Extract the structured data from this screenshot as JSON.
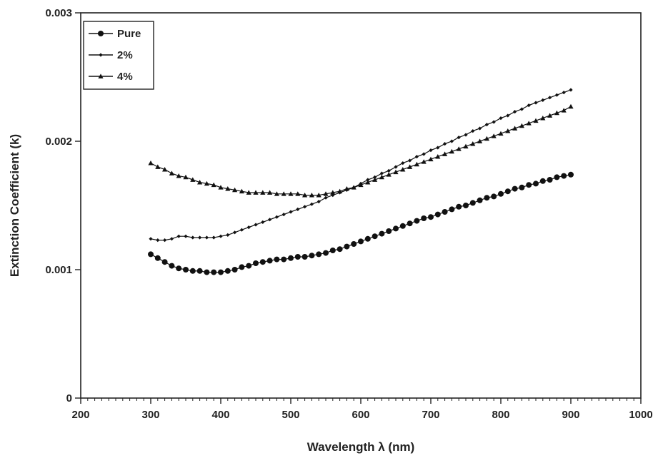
{
  "chart_data": {
    "type": "line",
    "xlabel": "Wavelength λ (nm)",
    "ylabel": "Extinction Coefficient (k)",
    "xlim": [
      200,
      1000
    ],
    "ylim": [
      0,
      0.003
    ],
    "x_ticks": [
      "200",
      "300",
      "400",
      "500",
      "600",
      "700",
      "800",
      "900",
      "1000"
    ],
    "y_ticks": [
      "0",
      "0.001",
      "0.002",
      "0.003"
    ],
    "grid": false,
    "legend_position": "top-left",
    "x": [
      300,
      310,
      320,
      330,
      340,
      350,
      360,
      370,
      380,
      390,
      400,
      410,
      420,
      430,
      440,
      450,
      460,
      470,
      480,
      490,
      500,
      510,
      520,
      530,
      540,
      550,
      560,
      570,
      580,
      590,
      600,
      610,
      620,
      630,
      640,
      650,
      660,
      670,
      680,
      690,
      700,
      710,
      720,
      730,
      740,
      750,
      760,
      770,
      780,
      790,
      800,
      810,
      820,
      830,
      840,
      850,
      860,
      870,
      880,
      890,
      900
    ],
    "series": [
      {
        "name": "Pure",
        "marker": "circle",
        "values": [
          0.00112,
          0.00109,
          0.00106,
          0.00103,
          0.00101,
          0.001,
          0.00099,
          0.00099,
          0.00098,
          0.00098,
          0.00098,
          0.00099,
          0.001,
          0.00102,
          0.00103,
          0.00105,
          0.00106,
          0.00107,
          0.00108,
          0.00108,
          0.00109,
          0.0011,
          0.0011,
          0.00111,
          0.00112,
          0.00113,
          0.00115,
          0.00116,
          0.00118,
          0.0012,
          0.00122,
          0.00124,
          0.00126,
          0.00128,
          0.0013,
          0.00132,
          0.00134,
          0.00136,
          0.00138,
          0.0014,
          0.00141,
          0.00143,
          0.00145,
          0.00147,
          0.00149,
          0.0015,
          0.00152,
          0.00154,
          0.00156,
          0.00157,
          0.00159,
          0.00161,
          0.00163,
          0.00164,
          0.00166,
          0.00167,
          0.00169,
          0.0017,
          0.00172,
          0.00173,
          0.00174
        ]
      },
      {
        "name": "2%",
        "marker": "diamond",
        "values": [
          0.00124,
          0.00123,
          0.00123,
          0.00124,
          0.00126,
          0.00126,
          0.00125,
          0.00125,
          0.00125,
          0.00125,
          0.00126,
          0.00127,
          0.00129,
          0.00131,
          0.00133,
          0.00135,
          0.00137,
          0.00139,
          0.00141,
          0.00143,
          0.00145,
          0.00147,
          0.00149,
          0.00151,
          0.00153,
          0.00156,
          0.00158,
          0.0016,
          0.00162,
          0.00164,
          0.00167,
          0.0017,
          0.00172,
          0.00175,
          0.00177,
          0.0018,
          0.00183,
          0.00185,
          0.00188,
          0.0019,
          0.00193,
          0.00195,
          0.00198,
          0.002,
          0.00203,
          0.00205,
          0.00208,
          0.0021,
          0.00213,
          0.00215,
          0.00218,
          0.0022,
          0.00223,
          0.00225,
          0.00228,
          0.0023,
          0.00232,
          0.00234,
          0.00236,
          0.00238,
          0.0024
        ]
      },
      {
        "name": "4%",
        "marker": "triangle",
        "values": [
          0.00183,
          0.0018,
          0.00178,
          0.00175,
          0.00173,
          0.00172,
          0.0017,
          0.00168,
          0.00167,
          0.00166,
          0.00164,
          0.00163,
          0.00162,
          0.00161,
          0.0016,
          0.0016,
          0.0016,
          0.0016,
          0.00159,
          0.00159,
          0.00159,
          0.00159,
          0.00158,
          0.00158,
          0.00158,
          0.00159,
          0.0016,
          0.00161,
          0.00163,
          0.00164,
          0.00166,
          0.00168,
          0.0017,
          0.00172,
          0.00174,
          0.00176,
          0.00178,
          0.0018,
          0.00182,
          0.00184,
          0.00186,
          0.00188,
          0.0019,
          0.00192,
          0.00194,
          0.00196,
          0.00198,
          0.002,
          0.00202,
          0.00204,
          0.00206,
          0.00208,
          0.0021,
          0.00212,
          0.00214,
          0.00216,
          0.00218,
          0.0022,
          0.00222,
          0.00224,
          0.00227
        ]
      }
    ]
  }
}
